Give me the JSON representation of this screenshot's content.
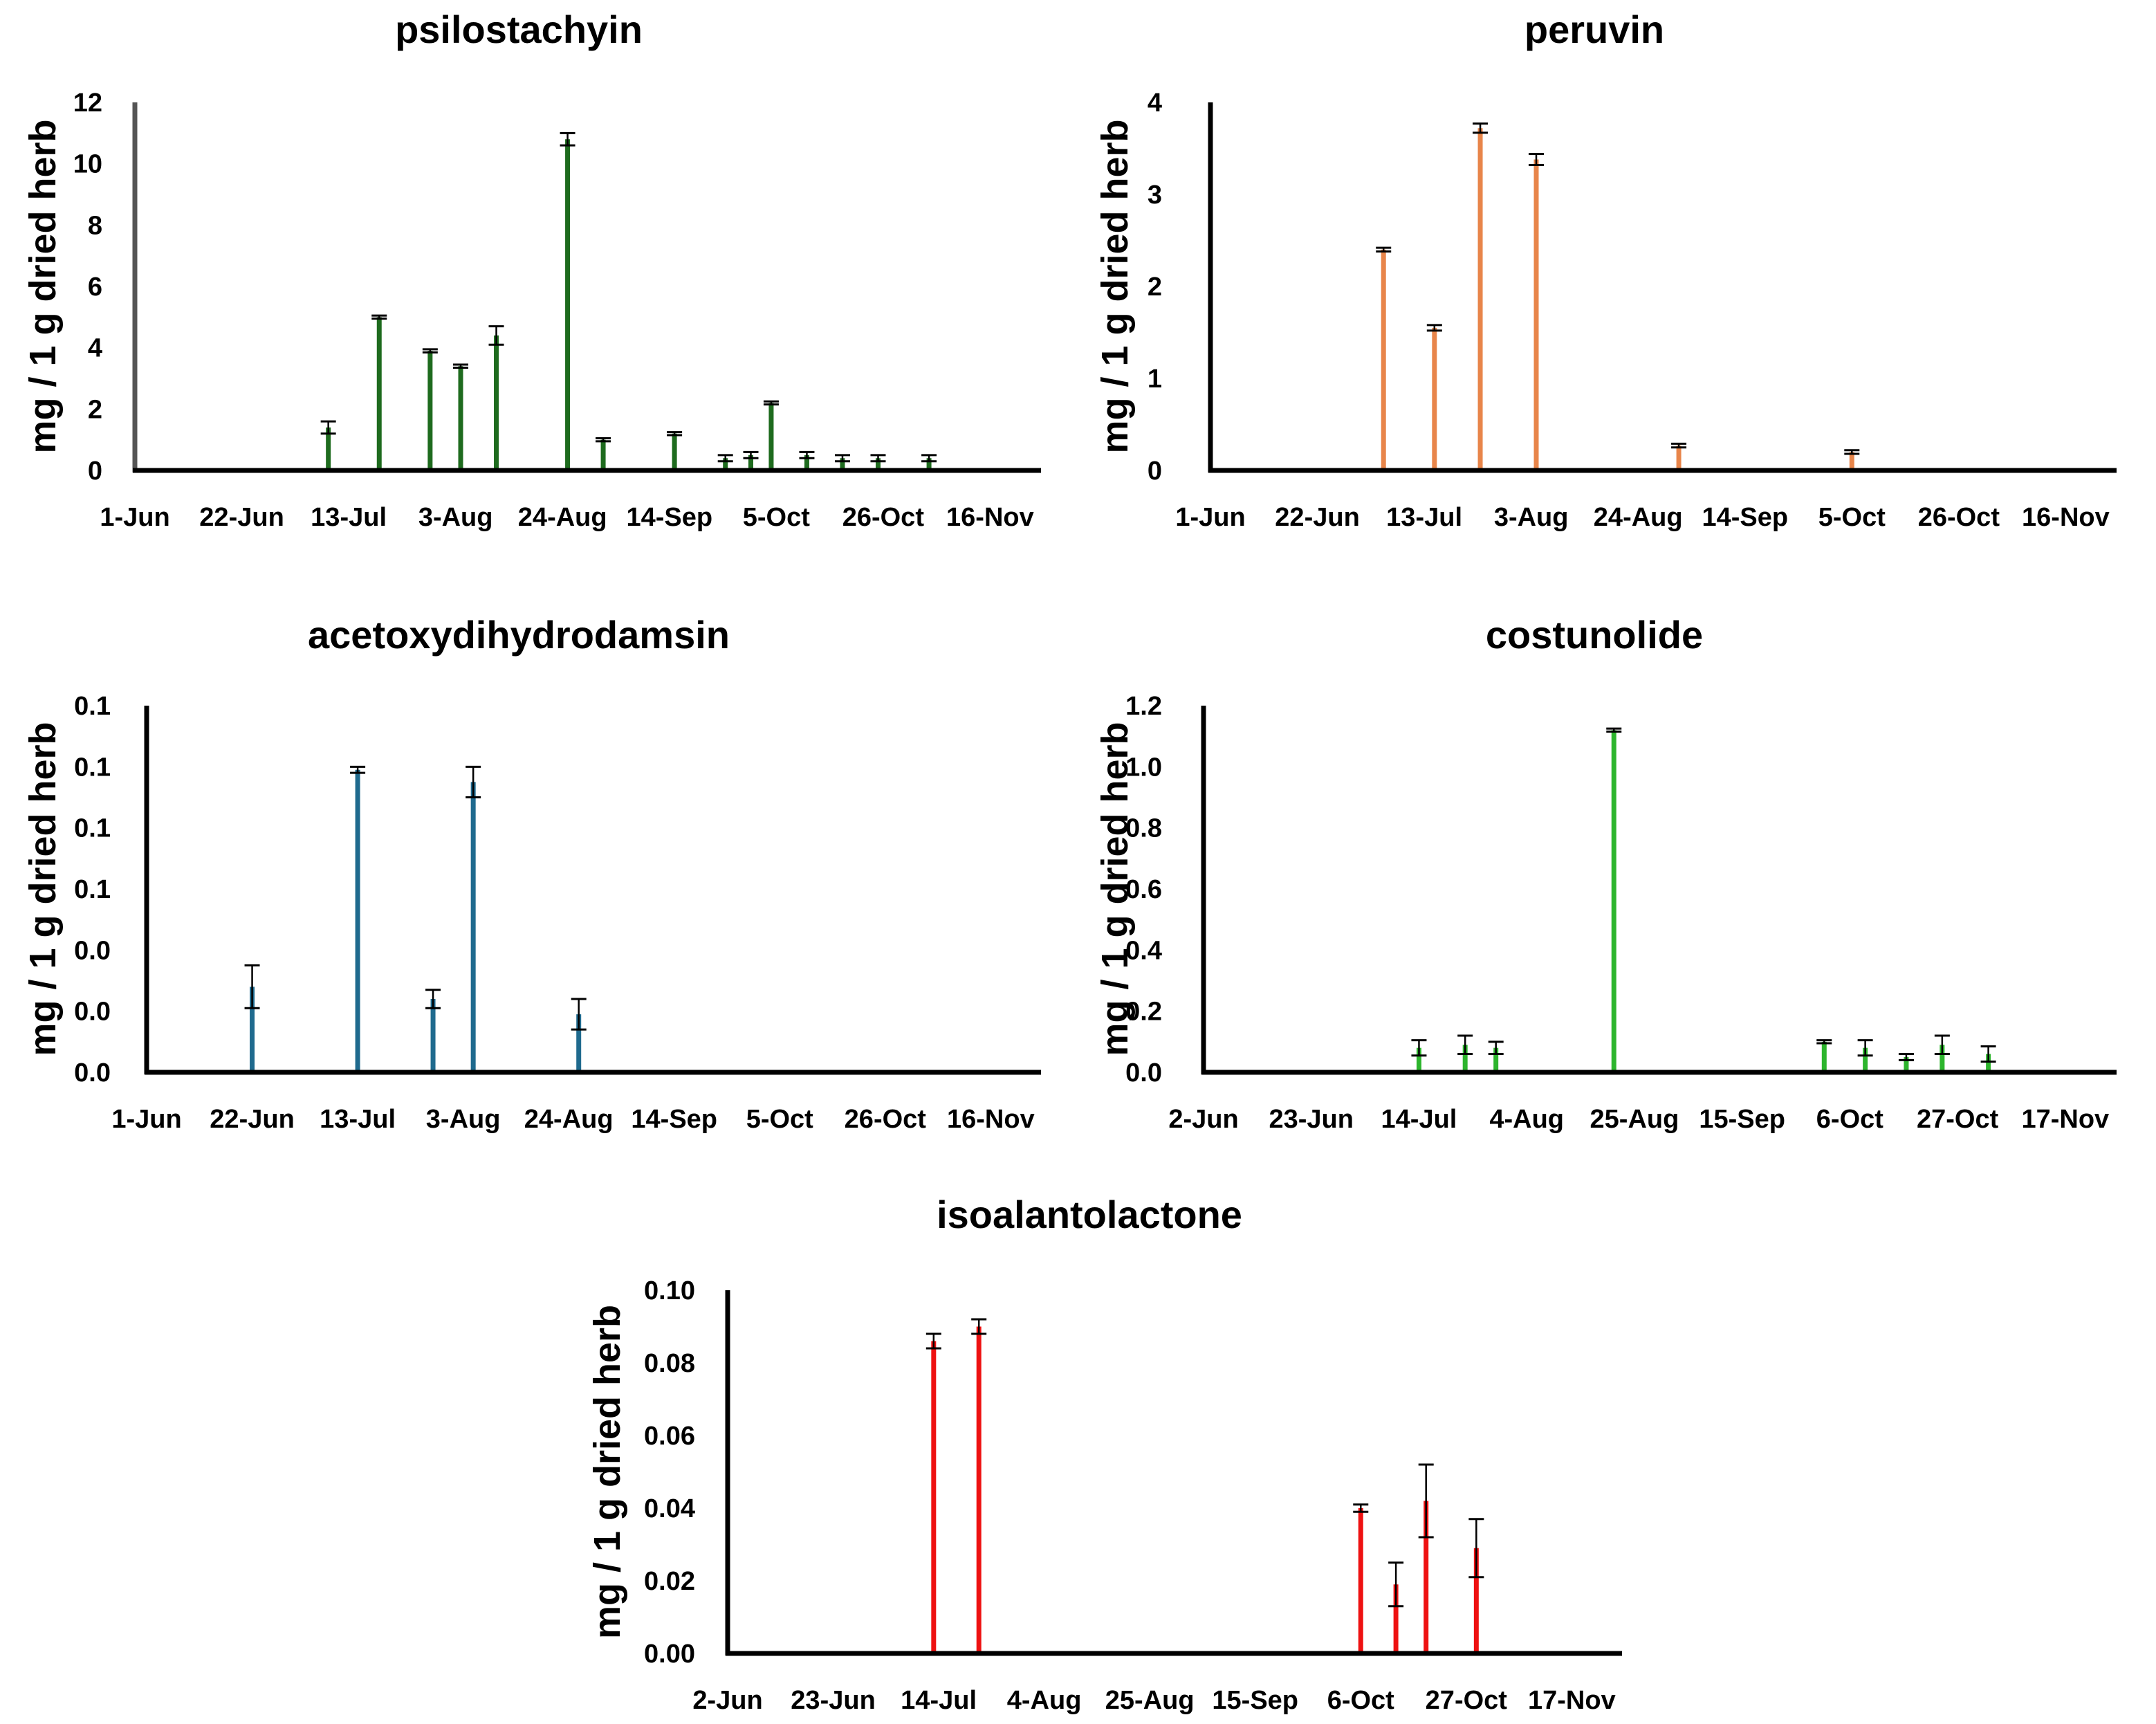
{
  "chart_data": [
    {
      "type": "bar",
      "title": "psilostachyin",
      "ylabel": "mg / 1 g dried herb",
      "xlabel": "",
      "color": "#1e6b1e",
      "x_ticks": [
        "1-Jun",
        "22-Jun",
        "13-Jul",
        "3-Aug",
        "24-Aug",
        "14-Sep",
        "5-Oct",
        "26-Oct",
        "16-Nov"
      ],
      "y_ticks": [
        "0",
        "2",
        "4",
        "6",
        "8",
        "10",
        "12"
      ],
      "xlim": [
        "2023-06-01",
        "2023-11-26"
      ],
      "ylim": [
        0,
        12
      ],
      "series": [
        {
          "x": [
            "2023-07-09",
            "2023-07-19",
            "2023-07-29",
            "2023-08-04",
            "2023-08-11",
            "2023-08-25",
            "2023-09-01",
            "2023-09-15",
            "2023-09-25",
            "2023-09-30",
            "2023-10-04",
            "2023-10-11",
            "2023-10-18",
            "2023-10-25",
            "2023-11-04"
          ],
          "y": [
            1.4,
            5.0,
            3.9,
            3.4,
            4.4,
            10.8,
            1.0,
            1.2,
            0.4,
            0.5,
            2.2,
            0.5,
            0.4,
            0.4,
            0.4
          ],
          "err": [
            0.2,
            0.05,
            0.05,
            0.05,
            0.3,
            0.2,
            0.05,
            0.05,
            0.1,
            0.1,
            0.05,
            0.1,
            0.1,
            0.1,
            0.1
          ]
        }
      ]
    },
    {
      "type": "bar",
      "title": "peruvin",
      "ylabel": "mg / 1 g dried herb",
      "xlabel": "",
      "color": "#e8854a",
      "x_ticks": [
        "1-Jun",
        "22-Jun",
        "13-Jul",
        "3-Aug",
        "24-Aug",
        "14-Sep",
        "5-Oct",
        "26-Oct",
        "16-Nov"
      ],
      "y_ticks": [
        "0",
        "1",
        "2",
        "3",
        "4"
      ],
      "xlim": [
        "2023-06-01",
        "2023-11-26"
      ],
      "ylim": [
        0,
        4
      ],
      "series": [
        {
          "x": [
            "2023-07-05",
            "2023-07-15",
            "2023-07-24",
            "2023-08-04",
            "2023-09-01",
            "2023-10-05"
          ],
          "y": [
            2.4,
            1.55,
            3.72,
            3.38,
            0.27,
            0.2
          ],
          "err": [
            0.02,
            0.03,
            0.05,
            0.06,
            0.02,
            0.02
          ]
        }
      ]
    },
    {
      "type": "bar",
      "title": "acetoxydihydrodamsin",
      "ylabel": "mg / 1 g dried herb",
      "xlabel": "",
      "color": "#1f6a8e",
      "x_ticks": [
        "1-Jun",
        "22-Jun",
        "13-Jul",
        "3-Aug",
        "24-Aug",
        "14-Sep",
        "5-Oct",
        "26-Oct",
        "16-Nov"
      ],
      "y_ticks": [
        "0.0",
        "0.0",
        "0.0",
        "0.1",
        "0.1",
        "0.1",
        "0.1"
      ],
      "xlim": [
        "2023-06-01",
        "2023-11-26"
      ],
      "ylim": [
        0,
        0.12
      ],
      "series": [
        {
          "x": [
            "2023-06-22",
            "2023-07-13",
            "2023-07-28",
            "2023-08-05",
            "2023-08-26"
          ],
          "y": [
            0.028,
            0.099,
            0.024,
            0.095,
            0.019
          ],
          "err": [
            0.007,
            0.001,
            0.003,
            0.005,
            0.005
          ]
        }
      ]
    },
    {
      "type": "bar",
      "title": "costunolide",
      "ylabel": "mg / 1 g dried herb",
      "xlabel": "",
      "color": "#2db52d",
      "x_ticks": [
        "2-Jun",
        "23-Jun",
        "14-Jul",
        "4-Aug",
        "25-Aug",
        "15-Sep",
        "6-Oct",
        "27-Oct",
        "17-Nov"
      ],
      "y_ticks": [
        "0.0",
        "0.2",
        "0.4",
        "0.6",
        "0.8",
        "1.0",
        "1.2"
      ],
      "xlim": [
        "2023-06-02",
        "2023-11-27"
      ],
      "ylim": [
        0,
        1.2
      ],
      "series": [
        {
          "x": [
            "2023-07-14",
            "2023-07-23",
            "2023-07-29",
            "2023-08-21",
            "2023-10-01",
            "2023-10-09",
            "2023-10-17",
            "2023-10-24",
            "2023-11-02"
          ],
          "y": [
            0.08,
            0.09,
            0.08,
            1.12,
            0.1,
            0.08,
            0.05,
            0.09,
            0.06
          ],
          "err": [
            0.025,
            0.03,
            0.02,
            0.005,
            0.005,
            0.025,
            0.01,
            0.03,
            0.025
          ]
        }
      ]
    },
    {
      "type": "bar",
      "title": "isoalantolactone",
      "ylabel": "mg / 1 g dried herb",
      "xlabel": "",
      "color": "#ee1111",
      "x_ticks": [
        "2-Jun",
        "23-Jun",
        "14-Jul",
        "4-Aug",
        "25-Aug",
        "15-Sep",
        "6-Oct",
        "27-Oct",
        "17-Nov"
      ],
      "y_ticks": [
        "0.00",
        "0.02",
        "0.04",
        "0.06",
        "0.08",
        "0.10"
      ],
      "xlim": [
        "2023-06-02",
        "2023-11-27"
      ],
      "ylim": [
        0,
        0.1
      ],
      "series": [
        {
          "x": [
            "2023-07-13",
            "2023-07-22",
            "2023-10-06",
            "2023-10-13",
            "2023-10-19",
            "2023-10-29"
          ],
          "y": [
            0.086,
            0.09,
            0.04,
            0.019,
            0.042,
            0.029
          ],
          "err": [
            0.002,
            0.002,
            0.001,
            0.006,
            0.01,
            0.008
          ]
        }
      ]
    }
  ]
}
